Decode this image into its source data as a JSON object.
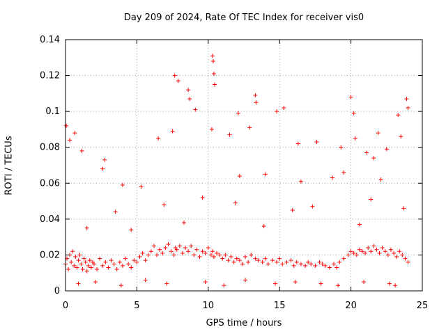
{
  "chart_data": {
    "type": "scatter",
    "title": "Day 209 of 2024, Rate Of TEC Index for receiver vis0",
    "xlabel": "GPS time / hours",
    "ylabel": "ROTI / TECUs",
    "xlim": [
      0,
      25
    ],
    "ylim": [
      0,
      0.14
    ],
    "xticks": [
      0,
      5,
      10,
      15,
      20,
      25
    ],
    "xtick_labels": [
      "0",
      "5",
      "10",
      "15",
      "20",
      "25"
    ],
    "yticks": [
      0,
      0.02,
      0.04,
      0.06,
      0.08,
      0.1,
      0.12,
      0.14
    ],
    "ytick_labels": [
      "0",
      "0.02",
      "0.04",
      "0.06",
      "0.08",
      "0.1",
      "0.12",
      "0.14"
    ],
    "grid": true,
    "marker": "+",
    "series": [
      {
        "name": "ROTI",
        "color": "#ff0000",
        "x": [
          0.0,
          0.1,
          0.2,
          0.3,
          0.4,
          0.5,
          0.6,
          0.7,
          0.8,
          0.9,
          1.0,
          1.1,
          1.2,
          1.3,
          1.4,
          1.5,
          1.6,
          1.7,
          1.8,
          1.9,
          2.0,
          2.2,
          2.4,
          2.6,
          2.8,
          3.0,
          3.2,
          3.4,
          3.6,
          3.8,
          4.0,
          4.2,
          4.4,
          4.6,
          4.8,
          5.0,
          5.2,
          5.4,
          5.6,
          5.8,
          6.0,
          6.2,
          6.4,
          6.6,
          6.8,
          7.0,
          7.2,
          7.4,
          7.6,
          7.7,
          7.8,
          8.0,
          8.2,
          8.4,
          8.6,
          8.8,
          9.0,
          9.2,
          9.4,
          9.6,
          9.8,
          10.0,
          10.2,
          10.3,
          10.4,
          10.6,
          10.8,
          11.0,
          11.2,
          11.4,
          11.6,
          11.8,
          12.0,
          12.2,
          12.4,
          12.6,
          12.8,
          13.0,
          13.3,
          13.5,
          13.8,
          14.0,
          14.2,
          14.5,
          14.8,
          15.0,
          15.2,
          15.5,
          15.8,
          16.0,
          16.2,
          16.5,
          16.8,
          17.0,
          17.2,
          17.5,
          17.8,
          18.0,
          18.2,
          18.5,
          18.8,
          19.0,
          19.2,
          19.5,
          19.8,
          20.0,
          20.2,
          20.4,
          20.6,
          20.8,
          21.0,
          21.2,
          21.4,
          21.6,
          21.8,
          22.0,
          22.2,
          22.4,
          22.6,
          22.8,
          23.0,
          23.2,
          23.4,
          23.6,
          23.8,
          24.0,
          0.05,
          0.3,
          0.65,
          1.15,
          2.75,
          4.0,
          6.5,
          7.5,
          7.65,
          7.9,
          8.6,
          8.7,
          9.1,
          10.3,
          10.35,
          10.4,
          10.45,
          10.25,
          11.5,
          12.1,
          12.9,
          13.3,
          13.35,
          14.8,
          15.3,
          16.3,
          17.6,
          19.3,
          20.0,
          20.2,
          20.3,
          21.1,
          21.6,
          21.9,
          22.5,
          23.3,
          23.5,
          23.9,
          24.0,
          12.2,
          2.6,
          5.3,
          14.0,
          16.5,
          18.7,
          19.5,
          22.1,
          3.5,
          6.9,
          9.6,
          11.9,
          15.9,
          17.3,
          21.4,
          23.7,
          1.5,
          4.6,
          8.3,
          13.9,
          20.6,
          0.9,
          2.1,
          3.9,
          5.6,
          7.1,
          9.8,
          11.1,
          12.6,
          14.7,
          16.1,
          17.9,
          19.1,
          20.9,
          22.7,
          23.1
        ],
        "y": [
          0.015,
          0.018,
          0.012,
          0.02,
          0.016,
          0.022,
          0.014,
          0.019,
          0.013,
          0.017,
          0.02,
          0.015,
          0.012,
          0.018,
          0.016,
          0.011,
          0.014,
          0.017,
          0.013,
          0.016,
          0.015,
          0.012,
          0.018,
          0.014,
          0.016,
          0.013,
          0.017,
          0.015,
          0.012,
          0.016,
          0.014,
          0.018,
          0.015,
          0.013,
          0.017,
          0.016,
          0.019,
          0.021,
          0.017,
          0.02,
          0.022,
          0.025,
          0.02,
          0.023,
          0.021,
          0.024,
          0.026,
          0.022,
          0.02,
          0.024,
          0.023,
          0.025,
          0.021,
          0.024,
          0.022,
          0.025,
          0.02,
          0.023,
          0.019,
          0.022,
          0.021,
          0.024,
          0.02,
          0.022,
          0.019,
          0.021,
          0.02,
          0.018,
          0.02,
          0.017,
          0.019,
          0.016,
          0.018,
          0.017,
          0.015,
          0.019,
          0.016,
          0.02,
          0.018,
          0.017,
          0.016,
          0.018,
          0.015,
          0.017,
          0.016,
          0.018,
          0.015,
          0.016,
          0.017,
          0.014,
          0.016,
          0.015,
          0.014,
          0.016,
          0.015,
          0.014,
          0.016,
          0.015,
          0.014,
          0.013,
          0.015,
          0.013,
          0.016,
          0.018,
          0.02,
          0.022,
          0.021,
          0.02,
          0.023,
          0.022,
          0.021,
          0.024,
          0.022,
          0.025,
          0.023,
          0.021,
          0.024,
          0.022,
          0.02,
          0.023,
          0.021,
          0.019,
          0.022,
          0.02,
          0.018,
          0.016,
          0.092,
          0.084,
          0.088,
          0.078,
          0.073,
          0.059,
          0.085,
          0.089,
          0.12,
          0.117,
          0.112,
          0.107,
          0.101,
          0.131,
          0.128,
          0.121,
          0.115,
          0.09,
          0.087,
          0.099,
          0.091,
          0.109,
          0.105,
          0.1,
          0.102,
          0.082,
          0.083,
          0.08,
          0.108,
          0.099,
          0.085,
          0.077,
          0.074,
          0.088,
          0.079,
          0.098,
          0.086,
          0.107,
          0.102,
          0.064,
          0.068,
          0.058,
          0.065,
          0.061,
          0.063,
          0.066,
          0.062,
          0.044,
          0.048,
          0.052,
          0.049,
          0.045,
          0.047,
          0.051,
          0.046,
          0.035,
          0.034,
          0.038,
          0.036,
          0.037,
          0.004,
          0.005,
          0.003,
          0.006,
          0.004,
          0.005,
          0.003,
          0.006,
          0.004,
          0.005,
          0.004,
          0.003,
          0.005,
          0.004,
          0.003
        ]
      }
    ]
  }
}
